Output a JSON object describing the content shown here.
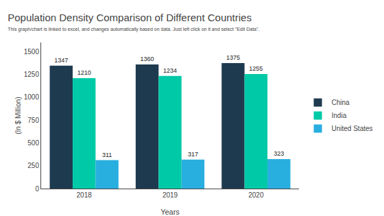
{
  "chart_data": {
    "type": "bar",
    "title": "Population Density Comparison of Different Countries",
    "subtitle": "This graph/chart is linked to excel, and changes automatically based on data. Just left click on it and select \"Edit Data\".",
    "xlabel": "Years",
    "ylabel": "(In $ Million)",
    "categories": [
      "2018",
      "2019",
      "2020"
    ],
    "series": [
      {
        "name": "China",
        "color": "#1e3a4f",
        "values": [
          1347,
          1360,
          1375
        ]
      },
      {
        "name": "India",
        "color": "#00c9a7",
        "values": [
          1210,
          1234,
          1255
        ]
      },
      {
        "name": "United States",
        "color": "#29aee0",
        "values": [
          311,
          317,
          323
        ]
      }
    ],
    "ylim": [
      0,
      1600
    ],
    "yticks": [
      0,
      250,
      500,
      750,
      1000,
      1250,
      1500
    ],
    "data_labels": true,
    "grid": false,
    "legend": "right"
  }
}
